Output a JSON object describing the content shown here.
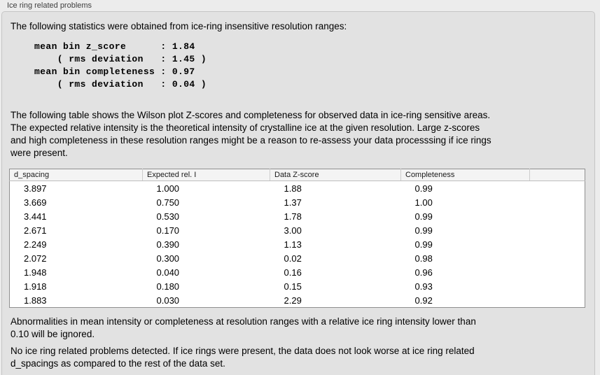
{
  "panel": {
    "title": "Ice ring related problems",
    "intro": "The following statistics were obtained from ice-ring insensitive resolution ranges:",
    "stats_block": "mean bin z_score      : 1.84\n    ( rms deviation   : 1.45 )\nmean bin completeness : 0.97\n    ( rms deviation   : 0.04 )",
    "stats": {
      "mean_bin_z_score": "1.84",
      "z_score_rms_deviation": "1.45",
      "mean_bin_completeness": "0.97",
      "completeness_rms_deviation": "0.04"
    },
    "table_description": "The following table shows the Wilson plot Z-scores and completeness for observed data in ice-ring sensitive areas.\nThe expected relative intensity is the theoretical intensity of crystalline ice at the given resolution. Large z-scores\nand high completeness in these resolution ranges might be a reason to re-assess your data processsing if ice rings\nwere present.",
    "ignore_note": "Abnormalities in mean intensity or completeness at resolution ranges with a relative ice ring intensity lower than\n0.10 will be ignored.",
    "conclusion": "No ice ring related problems detected. If ice rings were present, the data does not look worse at ice ring related\nd_spacings as compared to the rest of the data set."
  },
  "table": {
    "headers": [
      "d_spacing",
      "Expected rel. I",
      "Data Z-score",
      "Completeness",
      ""
    ],
    "rows": [
      [
        "3.897",
        "1.000",
        "1.88",
        "0.99"
      ],
      [
        "3.669",
        "0.750",
        "1.37",
        "1.00"
      ],
      [
        "3.441",
        "0.530",
        "1.78",
        "0.99"
      ],
      [
        "2.671",
        "0.170",
        "3.00",
        "0.99"
      ],
      [
        "2.249",
        "0.390",
        "1.13",
        "0.99"
      ],
      [
        "2.072",
        "0.300",
        "0.02",
        "0.98"
      ],
      [
        "1.948",
        "0.040",
        "0.16",
        "0.96"
      ],
      [
        "1.918",
        "0.180",
        "0.15",
        "0.93"
      ],
      [
        "1.883",
        "0.030",
        "2.29",
        "0.92"
      ]
    ]
  }
}
